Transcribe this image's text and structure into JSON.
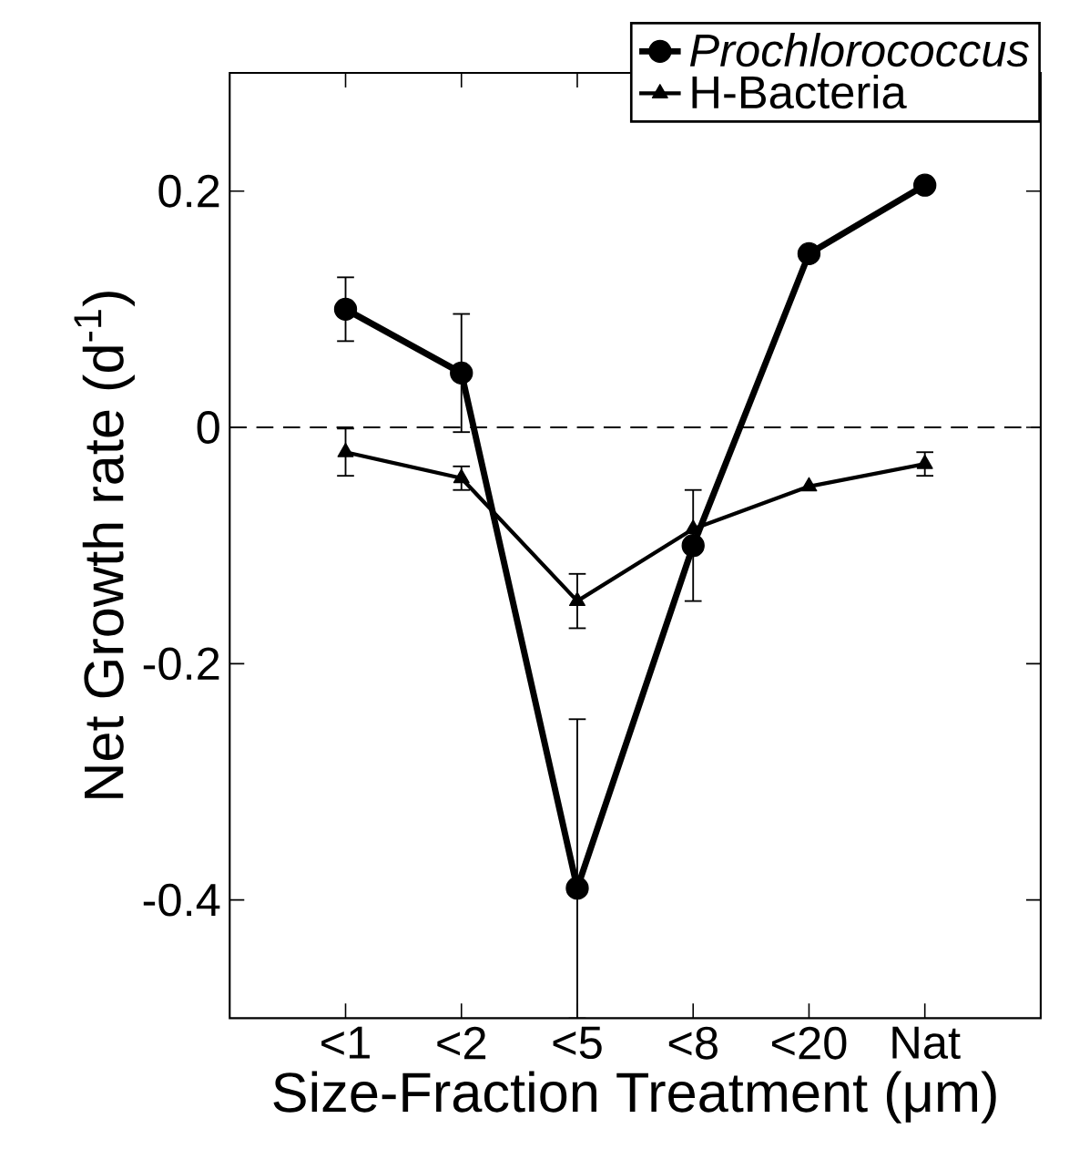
{
  "chart_data": {
    "type": "line",
    "xlabel": "Size-Fraction Treatment (μm)",
    "ylabel": "Net Growth rate (d$^{-1}$)",
    "categories": [
      "<1",
      "<2",
      "<5",
      "<8",
      "<20",
      "Nat"
    ],
    "series": [
      {
        "name": "*Prochlorococcus*",
        "color": "#000000",
        "marker": "circle",
        "values": [
          0.1,
          0.046,
          -0.39,
          -0.1,
          0.147,
          0.205
        ],
        "errors": [
          0.027,
          0.05,
          [
            -0.5,
            -0.247
          ],
          0.047,
          null,
          null
        ]
      },
      {
        "name": "H-Bacteria",
        "color": "#000000",
        "marker": "triangle",
        "values": [
          -0.021,
          -0.043,
          -0.147,
          -0.086,
          -0.05,
          -0.031
        ],
        "errors": [
          0.02,
          0.01,
          0.023,
          null,
          null,
          0.01
        ]
      }
    ],
    "ylim": [
      -0.5,
      0.3
    ],
    "yticks": [
      -0.4,
      -0.2,
      0,
      0.2
    ],
    "ref_lines": [
      {
        "axis": "y",
        "value": 0,
        "line_style": "dashed"
      }
    ],
    "legend": "top right",
    "line_style": "solid",
    "grid": false
  }
}
